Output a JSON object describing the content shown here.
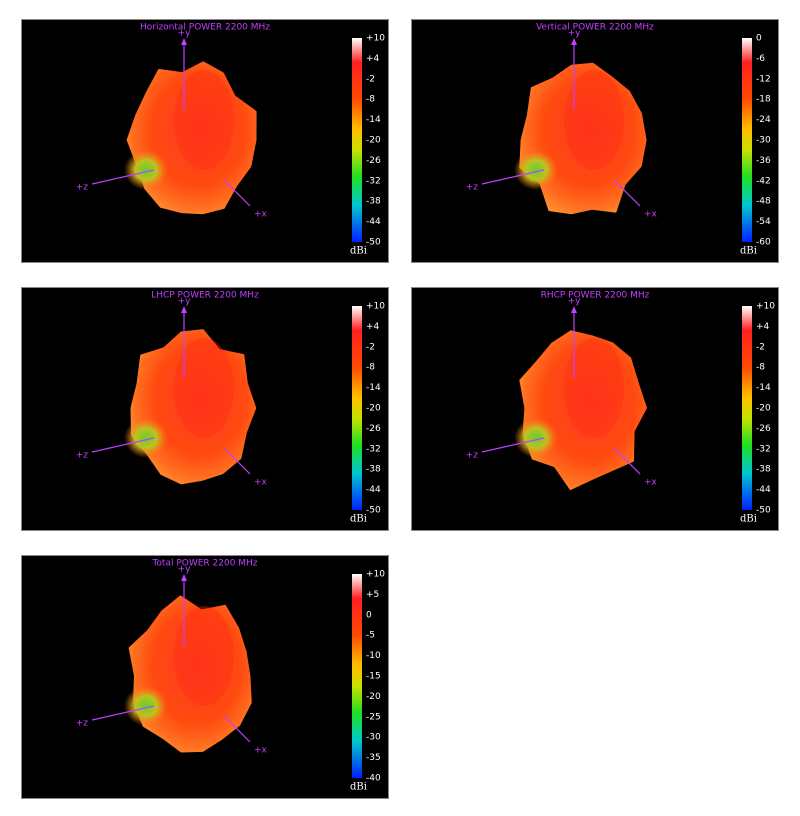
{
  "panels": [
    {
      "title": "Horizontal POWER 2200  MHz",
      "unit": "dBi",
      "axes": [
        "+y",
        "+z",
        "+x"
      ],
      "colorbar_ticks": [
        "+10",
        "+4",
        "-2",
        "-8",
        "-14",
        "-20",
        "-26",
        "-32",
        "-38",
        "-44",
        "-50"
      ]
    },
    {
      "title": "Vertical POWER 2200  MHz",
      "unit": "dBi",
      "axes": [
        "+y",
        "+z",
        "+x"
      ],
      "colorbar_ticks": [
        "0",
        "-6",
        "-12",
        "-18",
        "-24",
        "-30",
        "-36",
        "-42",
        "-48",
        "-54",
        "-60"
      ]
    },
    {
      "title": "LHCP POWER 2200  MHz",
      "unit": "dBi",
      "axes": [
        "+y",
        "+z",
        "+x"
      ],
      "colorbar_ticks": [
        "+10",
        "+4",
        "-2",
        "-8",
        "-14",
        "-20",
        "-26",
        "-32",
        "-38",
        "-44",
        "-50"
      ]
    },
    {
      "title": "RHCP POWER 2200  MHz",
      "unit": "dBi",
      "axes": [
        "+y",
        "+z",
        "+x"
      ],
      "colorbar_ticks": [
        "+10",
        "+4",
        "-2",
        "-8",
        "-14",
        "-20",
        "-26",
        "-32",
        "-38",
        "-44",
        "-50"
      ]
    },
    {
      "title": "Total POWER 2200  MHz",
      "unit": "dBi",
      "axes": [
        "+y",
        "+z",
        "+x"
      ],
      "colorbar_ticks": [
        "+10",
        "+5",
        "0",
        "-5",
        "-10",
        "-15",
        "-20",
        "-25",
        "-30",
        "-35",
        "-40"
      ]
    }
  ]
}
